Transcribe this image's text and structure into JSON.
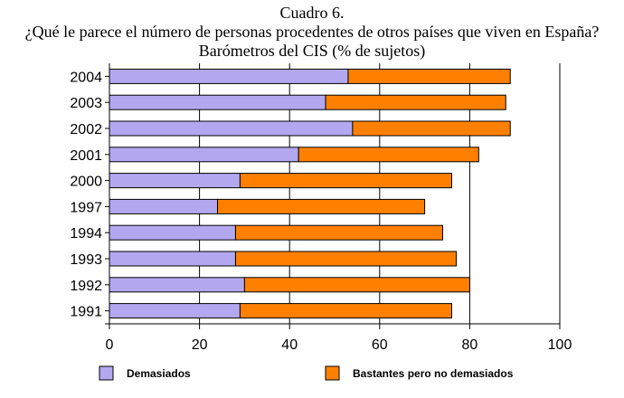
{
  "chart_data": {
    "type": "bar",
    "orientation": "horizontal",
    "stacked": true,
    "title": "Cuadro 6.",
    "subtitle": "¿Qué le parece el número de personas procedentes de otros países que viven en España?",
    "subtitle2": "Barómetros del CIS (% de sujetos)",
    "xlabel": "",
    "ylabel": "",
    "xlim": [
      0,
      100
    ],
    "xticks": [
      0,
      20,
      40,
      60,
      80,
      100
    ],
    "categories": [
      "2004",
      "2003",
      "2002",
      "2001",
      "2000",
      "1997",
      "1994",
      "1993",
      "1992",
      "1991"
    ],
    "series": [
      {
        "name": "Demasiados",
        "color": "#b3a8f0",
        "values": [
          53,
          48,
          54,
          42,
          29,
          24,
          28,
          28,
          30,
          29
        ]
      },
      {
        "name": "Bastantes pero no demasiados",
        "color": "#ff8000",
        "values": [
          36,
          40,
          35,
          40,
          47,
          46,
          46,
          49,
          50,
          47
        ]
      }
    ],
    "grid": "vertical",
    "legend_position": "bottom"
  }
}
